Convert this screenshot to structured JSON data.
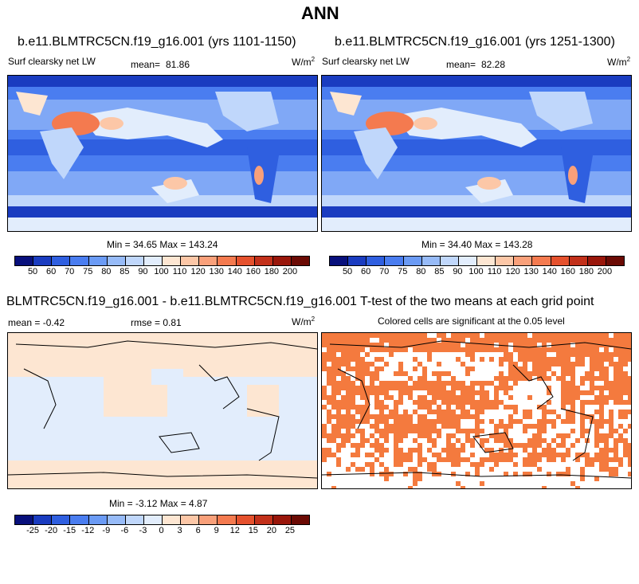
{
  "title": "ANN",
  "panel1": {
    "case_title": "b.e11.BLMTRC5CN.f19_g16.001 (yrs 1101-1150)",
    "variable": "Surf clearsky net LW",
    "mean_label": "mean=",
    "mean": "81.86",
    "units": "W/m",
    "units_exp": "2",
    "minmax": "Min =  34.65 Max = 143.24"
  },
  "panel2": {
    "case_title": "b.e11.BLMTRC5CN.f19_g16.001 (yrs 1251-1300)",
    "variable": "Surf clearsky net LW",
    "mean_label": "mean=",
    "mean": "82.28",
    "units": "W/m",
    "units_exp": "2",
    "minmax": "Min =  34.40 Max = 143.28"
  },
  "diff": {
    "title": "BLMTRC5CN.f19_g16.001 - b.e11.BLMTRC5CN.f19_g16.001",
    "mean_text": "mean =  -0.42",
    "rmse_text": "rmse =   0.81",
    "units": "W/m",
    "units_exp": "2",
    "minmax": "Min =  -3.12 Max =   4.87"
  },
  "ttest": {
    "title": "T-test of the two means at each grid point",
    "subtitle": "Colored cells are significant at the 0.05 level"
  },
  "colorbar_abs": {
    "labels": [
      "50",
      "60",
      "70",
      "75",
      "80",
      "85",
      "90",
      "100",
      "110",
      "120",
      "130",
      "140",
      "160",
      "180",
      "200"
    ],
    "colors": [
      "#08107c",
      "#1a3cc0",
      "#2f5fe0",
      "#4a7df0",
      "#6b9bf5",
      "#97bbf8",
      "#c0d7fb",
      "#e2edfc",
      "#fde6d2",
      "#fcc7a7",
      "#f9a07a",
      "#f47a4f",
      "#e5512d",
      "#c2301a",
      "#99160a",
      "#6b0a04"
    ]
  },
  "colorbar_diff": {
    "labels": [
      "-25",
      "-20",
      "-15",
      "-12",
      "-9",
      "-6",
      "-3",
      "0",
      "3",
      "6",
      "9",
      "12",
      "15",
      "20",
      "25"
    ],
    "colors": [
      "#08107c",
      "#1a3cc0",
      "#2f5fe0",
      "#4a7df0",
      "#6b9bf5",
      "#97bbf8",
      "#c0d7fb",
      "#e2edfc",
      "#fde6d2",
      "#fcc7a7",
      "#f9a07a",
      "#f47a4f",
      "#e5512d",
      "#c2301a",
      "#99160a",
      "#6b0a04"
    ]
  },
  "ttest_color": "#f47a3e"
}
